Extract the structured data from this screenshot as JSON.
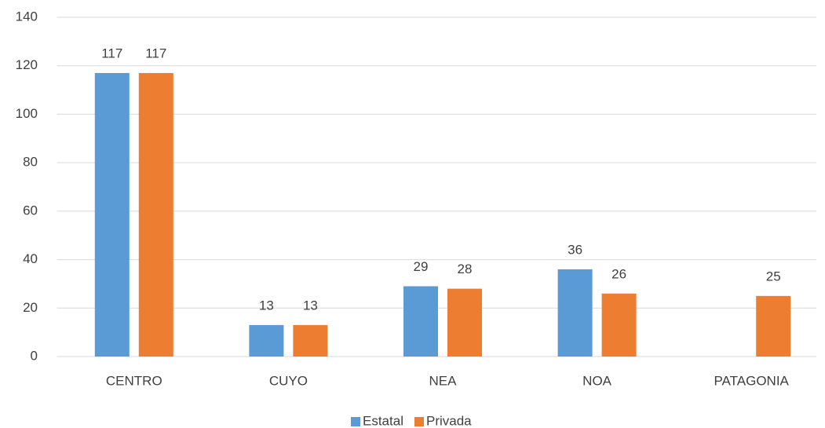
{
  "chart_data": {
    "type": "bar",
    "categories": [
      "CENTRO",
      "CUYO",
      "NEA",
      "NOA",
      "PATAGONIA"
    ],
    "series": [
      {
        "name": "Estatal",
        "color": "#5b9bd5",
        "values": [
          117,
          13,
          29,
          36,
          null
        ]
      },
      {
        "name": "Privada",
        "color": "#ed7d31",
        "values": [
          117,
          13,
          28,
          26,
          25
        ]
      }
    ],
    "ylim": [
      0,
      140
    ],
    "yticks": [
      0,
      20,
      40,
      60,
      80,
      100,
      120,
      140
    ],
    "grid": true,
    "legend": "bottom"
  }
}
